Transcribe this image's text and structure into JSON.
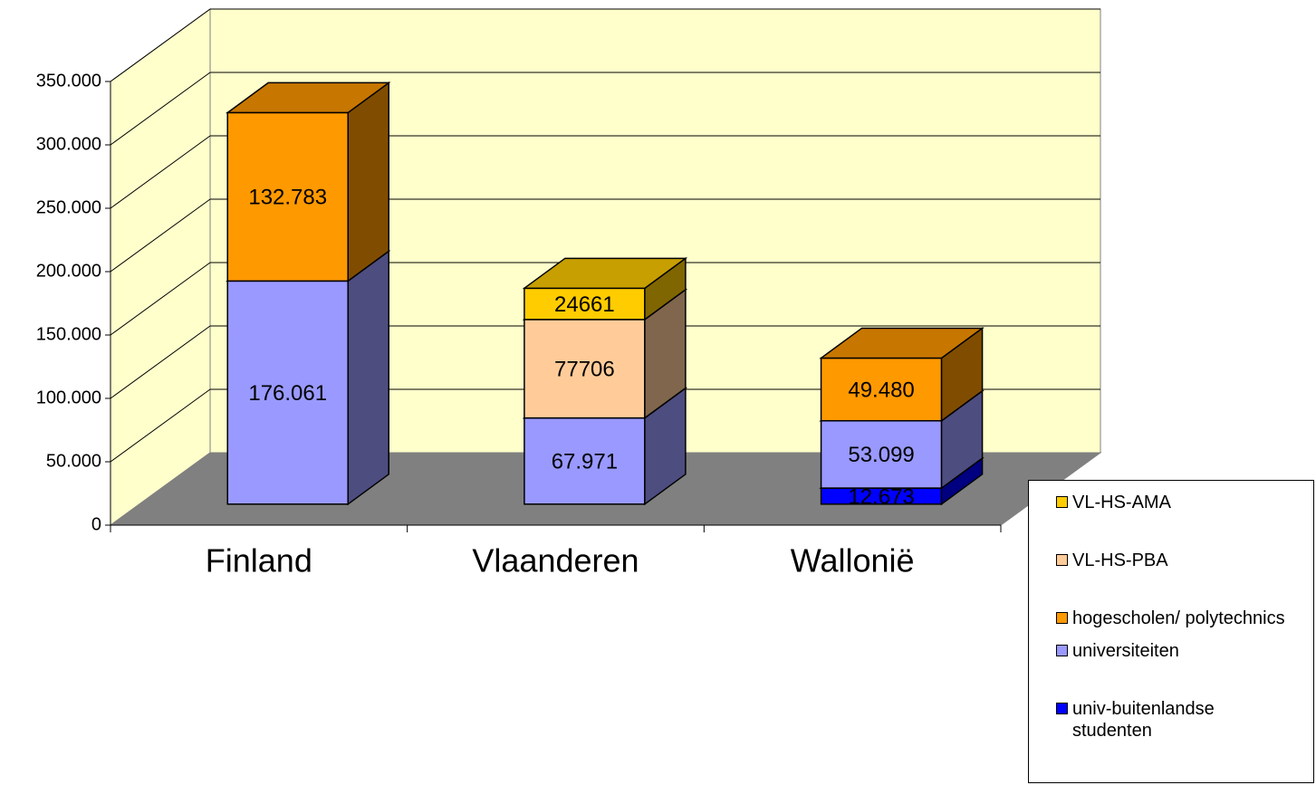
{
  "chart_data": {
    "type": "bar3d-stacked",
    "categories": [
      "Finland",
      "Vlaanderen",
      "Wallonië"
    ],
    "series": [
      {
        "name": "univ-buitenlandse studenten",
        "color": "#0000ff",
        "values": [
          null,
          null,
          12673
        ],
        "value_labels": [
          null,
          null,
          "12.673"
        ]
      },
      {
        "name": "universiteiten",
        "color": "#9999ff",
        "values": [
          176061,
          67971,
          53099
        ],
        "value_labels": [
          "176.061",
          "67.971",
          "53.099"
        ]
      },
      {
        "name": "hogescholen/ polytechnics",
        "color": "#ff9900",
        "values": [
          132783,
          null,
          49480
        ],
        "value_labels": [
          "132.783",
          null,
          "49.480"
        ]
      },
      {
        "name": "VL-HS-PBA",
        "color": "#ffcc99",
        "values": [
          null,
          77706,
          null
        ]
      },
      {
        "name": "VL-HS-AMA",
        "color": "#ffcc00",
        "values": [
          null,
          24661,
          null
        ]
      }
    ],
    "ylim": [
      0,
      400000
    ],
    "yticks": [
      0,
      {
        "value": 50000,
        "label": "50.000"
      },
      {
        "value": 100000,
        "label": "100.000"
      },
      {
        "value": 150000,
        "label": "150.000"
      },
      {
        "value": 200000,
        "label": "200.000"
      },
      {
        "value": 250000,
        "label": "250.000"
      },
      {
        "value": 300000,
        "label": "300.000"
      },
      {
        "value": 350000,
        "label": "350.000"
      }
    ],
    "grid": true
  }
}
